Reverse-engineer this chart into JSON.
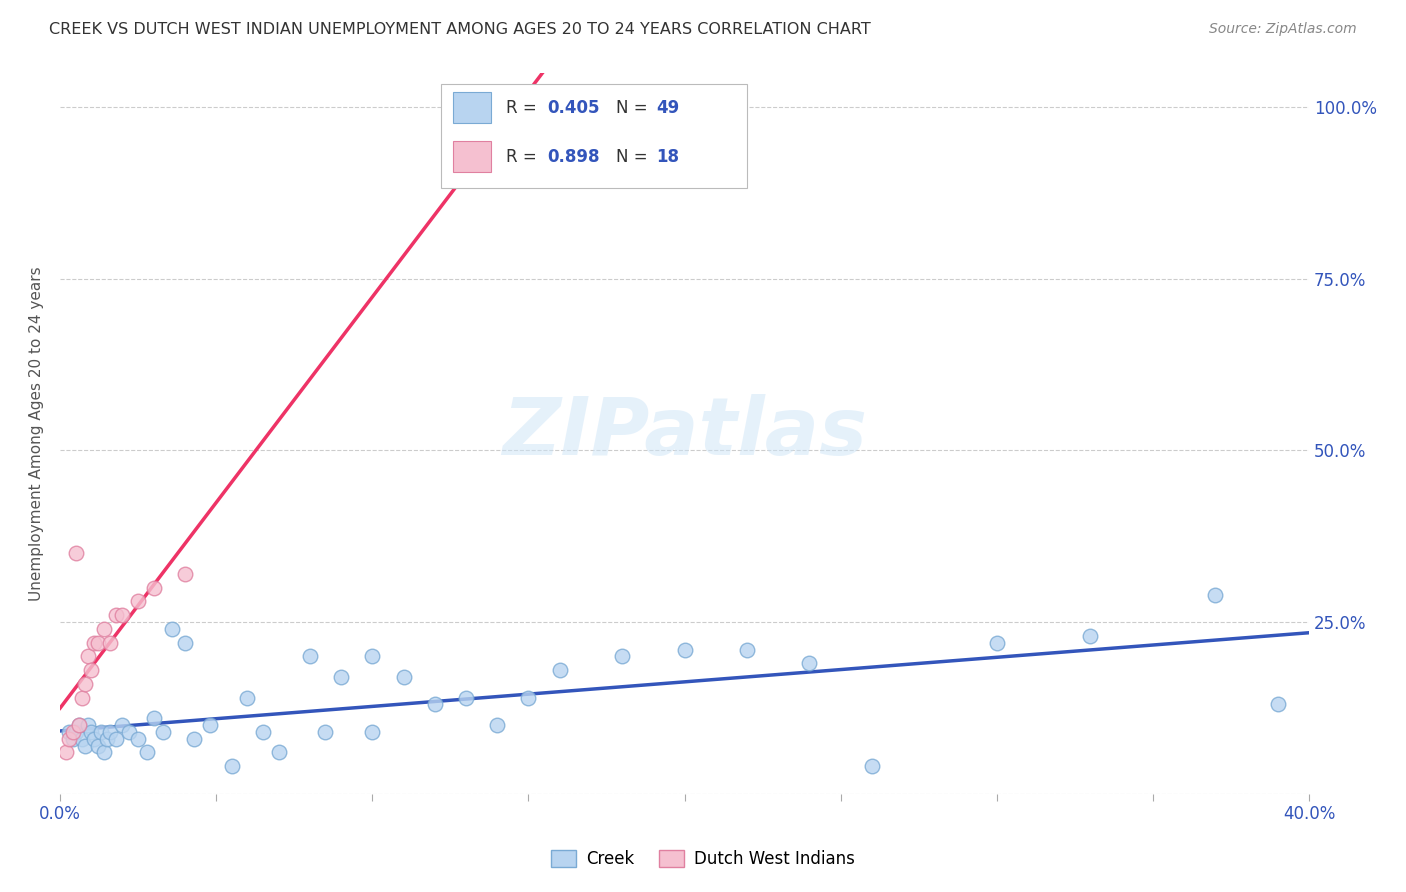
{
  "title": "CREEK VS DUTCH WEST INDIAN UNEMPLOYMENT AMONG AGES 20 TO 24 YEARS CORRELATION CHART",
  "source": "Source: ZipAtlas.com",
  "ylabel": "Unemployment Among Ages 20 to 24 years",
  "xlim": [
    0.0,
    0.4
  ],
  "ylim": [
    0.0,
    1.05
  ],
  "ytick_vals": [
    0.0,
    0.25,
    0.5,
    0.75,
    1.0
  ],
  "ytick_labels": [
    "",
    "25.0%",
    "50.0%",
    "75.0%",
    "100.0%"
  ],
  "xtick_vals": [
    0.0,
    0.05,
    0.1,
    0.15,
    0.2,
    0.25,
    0.3,
    0.35,
    0.4
  ],
  "xtick_labels": [
    "0.0%",
    "",
    "",
    "",
    "",
    "",
    "",
    "",
    "40.0%"
  ],
  "grid_color": "#cccccc",
  "watermark": "ZIPatlas",
  "creek_color": "#b8d4f0",
  "creek_edge_color": "#7aaad4",
  "dutch_color": "#f5c0d0",
  "dutch_edge_color": "#e080a0",
  "creek_line_color": "#3355bb",
  "dutch_line_color": "#ee3366",
  "creek_R": "0.405",
  "creek_N": "49",
  "dutch_R": "0.898",
  "dutch_N": "18",
  "axis_label_color": "#3355bb",
  "title_color": "#333333",
  "source_color": "#888888",
  "creek_x": [
    0.003,
    0.004,
    0.005,
    0.006,
    0.007,
    0.008,
    0.009,
    0.01,
    0.011,
    0.012,
    0.013,
    0.014,
    0.015,
    0.016,
    0.018,
    0.02,
    0.022,
    0.025,
    0.028,
    0.03,
    0.033,
    0.036,
    0.04,
    0.043,
    0.048,
    0.055,
    0.06,
    0.065,
    0.07,
    0.08,
    0.085,
    0.09,
    0.1,
    0.1,
    0.11,
    0.12,
    0.13,
    0.14,
    0.15,
    0.16,
    0.18,
    0.2,
    0.22,
    0.24,
    0.26,
    0.3,
    0.33,
    0.37,
    0.39
  ],
  "creek_y": [
    0.09,
    0.08,
    0.09,
    0.1,
    0.08,
    0.07,
    0.1,
    0.09,
    0.08,
    0.07,
    0.09,
    0.06,
    0.08,
    0.09,
    0.08,
    0.1,
    0.09,
    0.08,
    0.06,
    0.11,
    0.09,
    0.24,
    0.22,
    0.08,
    0.1,
    0.04,
    0.14,
    0.09,
    0.06,
    0.2,
    0.09,
    0.17,
    0.2,
    0.09,
    0.17,
    0.13,
    0.14,
    0.1,
    0.14,
    0.18,
    0.2,
    0.21,
    0.21,
    0.19,
    0.04,
    0.22,
    0.23,
    0.29,
    0.13
  ],
  "dutch_x": [
    0.002,
    0.003,
    0.004,
    0.005,
    0.006,
    0.007,
    0.008,
    0.009,
    0.01,
    0.011,
    0.012,
    0.014,
    0.016,
    0.018,
    0.02,
    0.025,
    0.03,
    0.04
  ],
  "dutch_y": [
    0.06,
    0.08,
    0.09,
    0.35,
    0.1,
    0.14,
    0.16,
    0.2,
    0.18,
    0.22,
    0.22,
    0.24,
    0.22,
    0.26,
    0.26,
    0.28,
    0.3,
    0.32
  ]
}
